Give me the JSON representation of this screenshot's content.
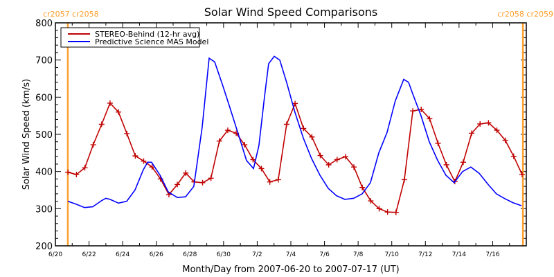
{
  "chart_data": {
    "type": "line",
    "title": "Solar Wind Speed Comparisons",
    "xlabel": "Month/Day from 2007-06-20 to 2007-07-17 (UT)",
    "ylabel": "Solar Wind Speed (km/s)",
    "x_unit": "days since 2007-06-20 00:00 UT",
    "xlim": [
      0,
      28
    ],
    "ylim": [
      200,
      800
    ],
    "yticks": [
      200,
      300,
      400,
      500,
      600,
      700,
      800
    ],
    "ytick_labels": [
      "200",
      "300",
      "400",
      "500",
      "600",
      "700",
      "800"
    ],
    "xticks": [
      0,
      2,
      4,
      6,
      8,
      10,
      12,
      14,
      16,
      18,
      20,
      22,
      24,
      26
    ],
    "xtick_labels": [
      "6/20",
      "6/22",
      "6/24",
      "6/26",
      "6/28",
      "6/30",
      "7/2",
      "7/4",
      "7/6",
      "7/8",
      "7/10",
      "7/12",
      "7/14",
      "7/16"
    ],
    "grid": false,
    "legend_position": "top-left",
    "series": [
      {
        "name": "STEREO-Behind (12-hr avg)",
        "color": "#c00000",
        "marker": "plus",
        "x": [
          0.75,
          1.25,
          1.75,
          2.25,
          2.75,
          3.25,
          3.75,
          4.25,
          4.75,
          5.25,
          5.75,
          6.25,
          6.75,
          7.25,
          7.75,
          8.25,
          8.75,
          9.25,
          9.75,
          10.25,
          10.75,
          11.25,
          11.75,
          12.25,
          12.75,
          13.25,
          13.75,
          14.25,
          14.75,
          15.25,
          15.75,
          16.25,
          16.75,
          17.25,
          17.75,
          18.25,
          18.75,
          19.25,
          19.75,
          20.25,
          20.75,
          21.25,
          21.75,
          22.25,
          22.75,
          23.25,
          23.75,
          24.25,
          24.75,
          25.25,
          25.75,
          26.25,
          26.75,
          27.25,
          27.75
        ],
        "values": [
          398,
          392,
          410,
          472,
          527,
          584,
          560,
          502,
          442,
          428,
          412,
          380,
          338,
          365,
          396,
          372,
          370,
          382,
          482,
          511,
          503,
          472,
          432,
          408,
          372,
          378,
          527,
          583,
          516,
          493,
          443,
          418,
          432,
          440,
          412,
          357,
          321,
          300,
          291,
          290,
          378,
          563,
          567,
          542,
          476,
          418,
          373,
          425,
          503,
          528,
          531,
          511,
          484,
          441,
          392
        ]
      },
      {
        "name": "Predictive Science MAS Model",
        "color": "#0000ff",
        "marker": "none",
        "x": [
          0.74,
          1.24,
          1.73,
          2.22,
          2.76,
          3.0,
          3.25,
          3.75,
          4.24,
          4.73,
          5.23,
          5.48,
          5.72,
          6.22,
          6.71,
          7.25,
          7.74,
          8.23,
          8.73,
          9.14,
          9.47,
          9.96,
          10.46,
          10.95,
          11.36,
          11.78,
          12.1,
          12.43,
          12.68,
          13.01,
          13.34,
          13.75,
          14.24,
          14.74,
          15.23,
          15.73,
          16.22,
          16.71,
          17.21,
          17.74,
          18.24,
          18.73,
          19.23,
          19.72,
          20.21,
          20.71,
          21.0,
          21.24,
          21.74,
          22.23,
          22.73,
          23.22,
          23.71,
          24.21,
          24.7,
          25.2,
          25.73,
          26.22,
          26.72,
          27.21,
          27.71
        ],
        "values": [
          320,
          312,
          303,
          305,
          322,
          328,
          325,
          315,
          320,
          350,
          405,
          425,
          425,
          390,
          345,
          330,
          332,
          360,
          520,
          705,
          695,
          630,
          560,
          490,
          430,
          408,
          470,
          600,
          690,
          710,
          700,
          640,
          560,
          490,
          435,
          390,
          355,
          335,
          325,
          328,
          340,
          370,
          450,
          505,
          590,
          648,
          640,
          610,
          550,
          480,
          430,
          390,
          370,
          400,
          412,
          395,
          365,
          340,
          327,
          316,
          308
        ]
      }
    ],
    "annotations": {
      "rotation_markers": [
        {
          "x": 0.74,
          "label": "cr2057 cr2058",
          "color": "#ffa030"
        },
        {
          "x": 27.8,
          "label": "cr2058 cr2059",
          "color": "#ffa030"
        }
      ]
    }
  }
}
